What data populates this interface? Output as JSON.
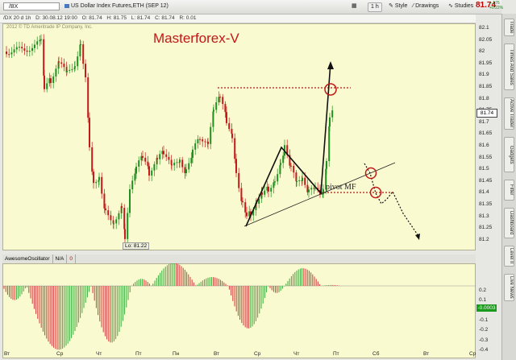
{
  "toolbar": {
    "symbol": "/BX",
    "description": "US Dollar Index Futures,ETH (SEP 12)",
    "timeframe": "1 h",
    "style": "Style",
    "drawings": "Drawings",
    "studies": "Studies",
    "last_price": "81.74",
    "change_1": "+.176",
    "change_2": "+0.22%"
  },
  "info_bar": {
    "series": "/DX 20 d 1h",
    "date": "D: 30.08.12 19:00",
    "open": "O: 81.74",
    "high": "H: 81.75",
    "low": "L: 81.74",
    "close": "C: 81.74",
    "range": "R: 0.01"
  },
  "watermark": "2012 © TD Ameritrade IP Company, Inc.",
  "brand": "Masterforex-V",
  "low_label": "Lo: 81.22",
  "pivot_label": "pivot MF",
  "price_current": "81.74",
  "price_scale": [
    "82.1",
    "82.05",
    "82",
    "81.95",
    "81.9",
    "81.85",
    "81.8",
    "81.75",
    "81.7",
    "81.65",
    "81.6",
    "81.55",
    "81.5",
    "81.45",
    "81.4",
    "81.35",
    "81.3",
    "81.25",
    "81.2"
  ],
  "oscillator": {
    "name": "AwesomeOscillator",
    "na": "N/A",
    "value_tag": "0",
    "current": "-0.0003",
    "scale": [
      "0.2",
      "0.1",
      "0",
      "-0.1",
      "-0.2",
      "-0.3",
      "-0.4"
    ]
  },
  "x_labels": [
    "Вт",
    "Ср",
    "Чт",
    "Пт",
    "Пн",
    "Вт",
    "Ср",
    "Чт",
    "Пт",
    "Сб",
    "Вт",
    "Ср"
  ],
  "side_tabs": [
    "Trade",
    "Times And Sales",
    "Active Trader",
    "Gadgets",
    "Filter",
    "Dashboard",
    "Level II",
    "Live News"
  ],
  "colors": {
    "up": "#1f8f1f",
    "down": "#c41a1a",
    "brand": "#c01818",
    "osc_up": "#3aa93a",
    "osc_down": "#d23a3a"
  }
}
